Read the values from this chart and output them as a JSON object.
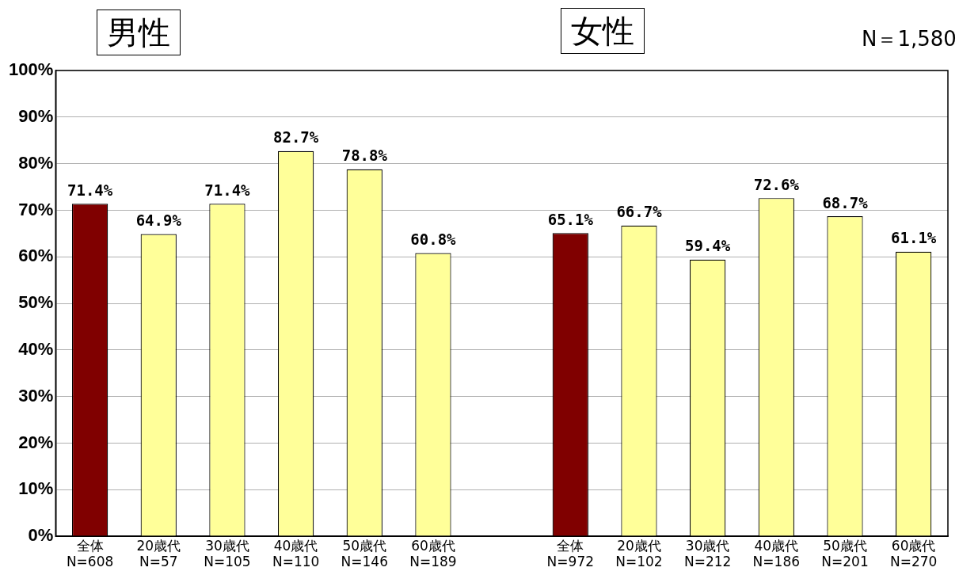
{
  "chart_data": {
    "type": "bar",
    "categories": [
      "全体\nN=608",
      "20歳代\nN=57",
      "30歳代\nN=105",
      "40歳代\nN=110",
      "50歳代\nN=146",
      "60歳代\nN=189",
      null,
      "全体\nN=972",
      "20歳代\nN=102",
      "30歳代\nN=212",
      "40歳代\nN=186",
      "50歳代\nN=201",
      "60歳代\nN=270"
    ],
    "values": [
      71.4,
      64.9,
      71.4,
      82.7,
      78.8,
      60.8,
      null,
      65.1,
      66.7,
      59.4,
      72.6,
      68.7,
      61.1
    ],
    "colors": [
      "#800000",
      "#ffff99",
      "#ffff99",
      "#ffff99",
      "#ffff99",
      "#ffff99",
      "#ffff99",
      "#800000",
      "#ffff99",
      "#ffff99",
      "#ffff99",
      "#ffff99",
      "#ffff99"
    ],
    "ylim": [
      0,
      100
    ],
    "yticks": [
      {
        "value": 0,
        "label": "0%"
      },
      {
        "value": 10,
        "label": "10%"
      },
      {
        "value": 20,
        "label": "20%"
      },
      {
        "value": 30,
        "label": "30%"
      },
      {
        "value": 40,
        "label": "40%"
      },
      {
        "value": 50,
        "label": "50%"
      },
      {
        "value": 60,
        "label": "60%"
      },
      {
        "value": 70,
        "label": "70%"
      },
      {
        "value": 80,
        "label": "80%"
      },
      {
        "value": 90,
        "label": "90%"
      },
      {
        "value": 100,
        "label": "100%"
      }
    ],
    "value_labels": [
      "71.4%",
      "64.9%",
      "71.4%",
      "82.7%",
      "78.8%",
      "60.8%",
      null,
      "65.1%",
      "66.7%",
      "59.4%",
      "72.6%",
      "68.7%",
      "61.1%"
    ],
    "grid": "y",
    "legend": false,
    "annotations": [
      "男性",
      "女性",
      "N＝1,580"
    ]
  }
}
